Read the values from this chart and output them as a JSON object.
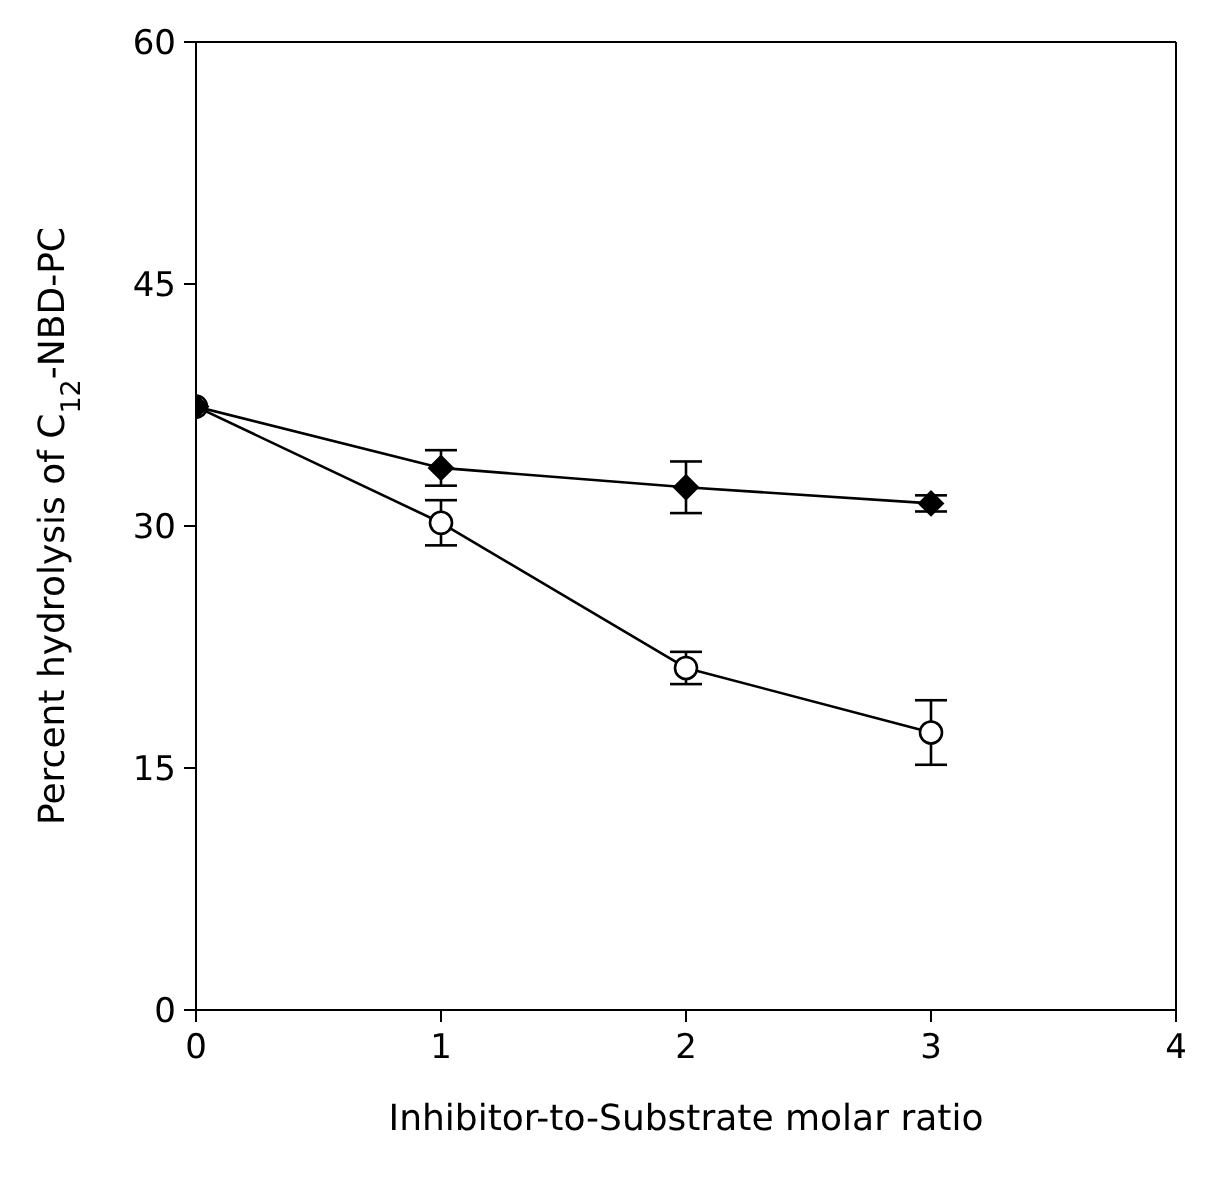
{
  "chart_data": {
    "type": "line",
    "xlabel": "Inhibitor-to-Substrate molar ratio",
    "ylabel": "Percent hydrolysis of C$_{12}$-NBD-PC",
    "x": [
      0,
      1,
      2,
      3
    ],
    "xlim": [
      0,
      4
    ],
    "xticks": [
      0,
      1,
      2,
      3,
      4
    ],
    "ylim": [
      0,
      60
    ],
    "yticks": [
      0,
      15,
      30,
      45,
      60
    ],
    "grid": false,
    "legend": false,
    "series": [
      {
        "color": "#000000",
        "marker": "circle",
        "values": [
          37.4,
          30.2,
          21.2,
          17.2
        ],
        "errors": [
          null,
          1.4,
          1.0,
          2.0
        ]
      },
      {
        "color": "#000000",
        "marker": "diamond",
        "values": [
          37.4,
          33.6,
          32.4,
          31.4
        ],
        "errors": [
          null,
          1.1,
          1.6,
          0.5
        ]
      }
    ]
  }
}
